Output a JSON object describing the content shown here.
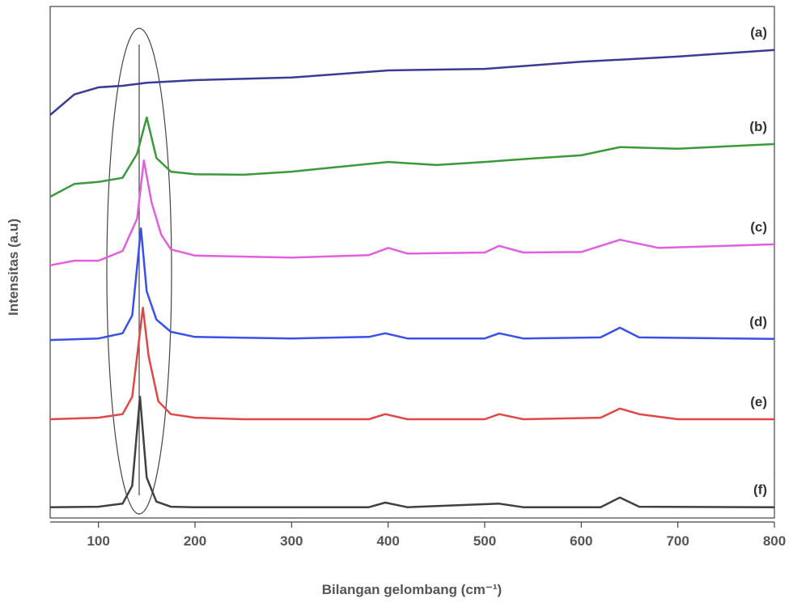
{
  "chart_data": {
    "type": "line",
    "x_label": "Bilangan gelombang (cm⁻¹)",
    "y_label": "Intensitas (a.u)",
    "xlim": [
      50,
      800
    ],
    "xticks": [
      100,
      200,
      300,
      400,
      500,
      600,
      700,
      800
    ],
    "ylim": [
      0,
      100
    ],
    "series": [
      {
        "name": "(a)",
        "color": "#3b3b96",
        "x": [
          50,
          75,
          100,
          125,
          150,
          200,
          300,
          400,
          500,
          600,
          700,
          800
        ],
        "values": [
          78.8,
          82.8,
          84.2,
          84.5,
          85.1,
          85.6,
          86.1,
          87.5,
          87.8,
          89.2,
          90.2,
          91.5
        ]
      },
      {
        "name": "(b)",
        "color": "#3a9a3a",
        "x": [
          50,
          75,
          100,
          125,
          140,
          150,
          160,
          175,
          200,
          250,
          300,
          400,
          450,
          500,
          550,
          600,
          640,
          700,
          800
        ],
        "values": [
          62.8,
          65.3,
          65.7,
          66.5,
          71.2,
          78.3,
          70.4,
          67.7,
          67.2,
          67.1,
          67.7,
          69.6,
          69.0,
          69.6,
          70.3,
          70.9,
          72.5,
          72.2,
          73.1
        ]
      },
      {
        "name": "(c)",
        "color": "#e060e0",
        "x": [
          50,
          75,
          100,
          125,
          140,
          147,
          155,
          165,
          175,
          200,
          300,
          380,
          400,
          420,
          500,
          515,
          540,
          600,
          640,
          680,
          800
        ],
        "values": [
          49.4,
          50.3,
          50.3,
          52.2,
          58.5,
          69.9,
          61.7,
          55.4,
          52.5,
          51.3,
          50.9,
          51.4,
          52.8,
          51.7,
          51.9,
          53.2,
          51.9,
          52.0,
          54.4,
          52.8,
          53.5
        ]
      },
      {
        "name": "(d)",
        "color": "#3a50e8",
        "x": [
          50,
          100,
          125,
          135,
          144,
          150,
          160,
          175,
          200,
          300,
          380,
          397,
          420,
          500,
          515,
          540,
          620,
          640,
          660,
          800
        ],
        "values": [
          34.8,
          35.1,
          36.1,
          39.6,
          56.6,
          44.3,
          38.8,
          36.4,
          35.4,
          35.1,
          35.4,
          36.1,
          35.1,
          35.1,
          36.1,
          35.1,
          35.3,
          37.2,
          35.3,
          35.0
        ]
      },
      {
        "name": "(e)",
        "color": "#e04848",
        "x": [
          50,
          100,
          125,
          135,
          146,
          152,
          162,
          175,
          200,
          250,
          380,
          397,
          420,
          500,
          515,
          540,
          620,
          640,
          660,
          700,
          800
        ],
        "values": [
          19.3,
          19.6,
          20.3,
          23.7,
          41.1,
          31.6,
          22.8,
          20.3,
          19.6,
          19.3,
          19.3,
          20.3,
          19.3,
          19.3,
          20.3,
          19.3,
          19.6,
          21.4,
          20.3,
          19.3,
          19.3
        ]
      },
      {
        "name": "(f)",
        "color": "#404040",
        "x": [
          50,
          100,
          125,
          135,
          143,
          150,
          160,
          175,
          200,
          380,
          397,
          420,
          515,
          540,
          620,
          640,
          660,
          800
        ],
        "values": [
          2.1,
          2.2,
          2.8,
          6.3,
          23.7,
          7.9,
          3.2,
          2.2,
          2.1,
          2.1,
          3.0,
          2.1,
          2.8,
          2.1,
          2.1,
          4.0,
          2.2,
          2.1
        ]
      }
    ]
  }
}
